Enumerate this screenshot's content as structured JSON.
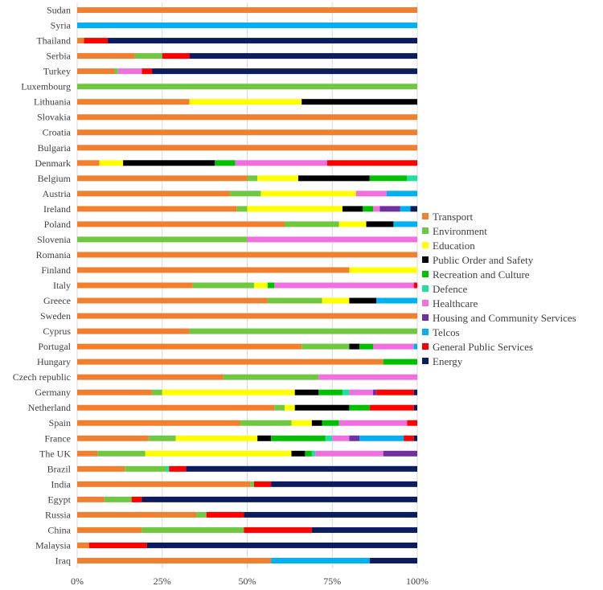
{
  "chart_data": {
    "type": "bar",
    "orientation": "horizontal",
    "stacked": true,
    "normalized": true,
    "xlim": [
      0,
      100
    ],
    "x_ticks": [
      "0%",
      "25%",
      "50%",
      "75%",
      "100%"
    ],
    "grid": true,
    "legend_position": "right",
    "categories": [
      "Sudan",
      "Syria",
      "Thailand",
      "Serbia",
      "Turkey",
      "Luxembourg",
      "Lithuania",
      "Slovakia",
      "Croatia",
      "Bulgaria",
      "Denmark",
      "Belgium",
      "Austria",
      "Ireland",
      "Poland",
      "Slovenia",
      "Romania",
      "Finland",
      "Italy",
      "Greece",
      "Sweden",
      "Cyprus",
      "Portugal",
      "Hungary",
      "Czech republic",
      "Germany",
      "Netherland",
      "Spain",
      "France",
      "The UK",
      "Brazil",
      "India",
      "Egypt",
      "Russia",
      "China",
      "Malaysia",
      "Iraq"
    ],
    "series": [
      {
        "name": "Transport",
        "color": "#F0802E",
        "values": [
          100,
          0,
          2,
          17,
          11,
          0,
          33,
          100,
          100,
          100,
          6.5,
          50,
          45,
          47,
          61,
          0,
          100,
          80,
          34,
          56,
          100,
          33,
          66,
          90,
          43,
          22,
          58,
          48,
          21,
          6,
          14,
          51,
          8,
          35,
          19,
          3.5,
          57
        ]
      },
      {
        "name": "Environment",
        "color": "#70C842",
        "values": [
          0,
          0,
          0,
          8,
          1,
          100,
          0,
          0,
          0,
          0,
          0,
          3,
          9,
          3,
          16,
          50,
          0,
          0,
          18,
          16,
          0,
          67,
          14,
          0,
          28,
          3,
          3,
          15,
          8,
          14,
          12,
          1,
          8,
          3,
          30,
          0,
          0
        ]
      },
      {
        "name": "Education",
        "color": "#FFFF00",
        "values": [
          0,
          0,
          0,
          0,
          0,
          0,
          33,
          0,
          0,
          0,
          7,
          12,
          28,
          28,
          8,
          0,
          0,
          20,
          4,
          8,
          0,
          0,
          0,
          0,
          0,
          39,
          3,
          6,
          24,
          43,
          0,
          0,
          0,
          0,
          0,
          0,
          0
        ]
      },
      {
        "name": "Public Order and Safety",
        "color": "#000000",
        "values": [
          0,
          0,
          0,
          0,
          0,
          0,
          34,
          0,
          0,
          0,
          27,
          21,
          0,
          6,
          8,
          0,
          0,
          0,
          0,
          8,
          0,
          0,
          3,
          0,
          0,
          7,
          16,
          3,
          4,
          4,
          0,
          0,
          0,
          0,
          0,
          0,
          0
        ]
      },
      {
        "name": "Recreation and Culture",
        "color": "#00C000",
        "values": [
          0,
          0,
          0,
          0,
          0,
          0,
          0,
          0,
          0,
          0,
          6,
          11,
          0,
          3,
          0,
          0,
          0,
          0,
          2,
          0,
          0,
          0,
          4,
          10,
          0,
          7,
          6,
          5,
          16,
          2,
          0,
          0,
          0,
          0,
          0,
          0,
          0
        ]
      },
      {
        "name": "Defence",
        "color": "#1EE0A0",
        "values": [
          0,
          0,
          0,
          0,
          0,
          0,
          0,
          0,
          0,
          0,
          0,
          3,
          0,
          0,
          0,
          0,
          0,
          0,
          0,
          0,
          0,
          0,
          0,
          0,
          0,
          2,
          0,
          0,
          2,
          1,
          1,
          0,
          0,
          0,
          0,
          0,
          0
        ]
      },
      {
        "name": "Healthcare",
        "color": "#F070E0",
        "values": [
          0,
          0,
          0,
          0,
          7,
          0,
          0,
          0,
          0,
          0,
          27,
          0,
          9,
          2,
          0,
          50,
          0,
          0,
          41,
          0,
          0,
          0,
          12,
          0,
          29,
          7,
          0,
          20,
          5,
          20,
          0,
          0,
          0,
          0,
          0,
          0,
          0
        ]
      },
      {
        "name": "Housing and Community Services",
        "color": "#7030A0",
        "values": [
          0,
          0,
          0,
          0,
          0,
          0,
          0,
          0,
          0,
          0,
          0,
          0,
          0,
          6,
          0,
          0,
          0,
          0,
          0,
          0,
          0,
          0,
          0,
          0,
          0,
          1,
          0,
          0,
          3,
          10,
          0,
          0,
          0,
          0,
          0,
          0,
          0
        ]
      },
      {
        "name": "Telcos",
        "color": "#00B0F0",
        "values": [
          0,
          100,
          0,
          0,
          0,
          0,
          0,
          0,
          0,
          0,
          0,
          0,
          9,
          3,
          7,
          0,
          0,
          0,
          0,
          12,
          0,
          0,
          1,
          0,
          0,
          0,
          0,
          0,
          13,
          0,
          0,
          0,
          0,
          0,
          0,
          0,
          29
        ]
      },
      {
        "name": "General Public Services",
        "color": "#FF0000",
        "values": [
          0,
          0,
          7,
          8,
          3,
          0,
          0,
          0,
          0,
          0,
          27,
          0,
          0,
          0,
          0,
          0,
          0,
          0,
          1,
          0,
          0,
          0,
          0,
          0,
          0,
          11,
          13,
          3,
          3,
          0,
          5,
          5,
          3,
          11,
          20,
          17,
          0
        ]
      },
      {
        "name": "Energy",
        "color": "#0B1D5E",
        "values": [
          0,
          0,
          91,
          67,
          78,
          0,
          0,
          0,
          0,
          0,
          0,
          0,
          0,
          2,
          0,
          0,
          0,
          0,
          0,
          0,
          0,
          0,
          0,
          0,
          0,
          1,
          1,
          0,
          1,
          0,
          68,
          43,
          81,
          51,
          31,
          79.5,
          14
        ]
      }
    ]
  }
}
